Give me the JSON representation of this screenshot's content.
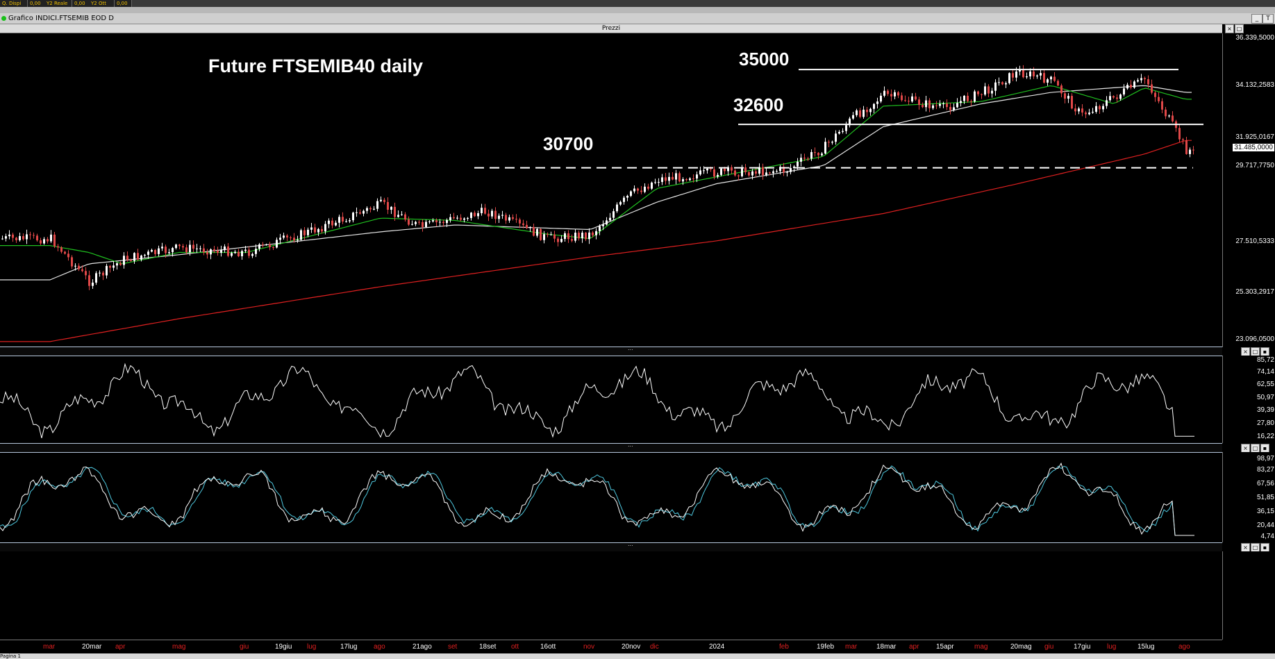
{
  "topbar": {
    "fields": [
      "Q. Dispi",
      "0,00",
      "Y2 Reale",
      "0,00",
      "Y2 Ott",
      "0,00"
    ]
  },
  "window": {
    "title": "Grafico INDICI.FTSEMIB EOD D",
    "pane_title": "Prezzi"
  },
  "annotations": {
    "title": "Future FTSEMIB40 daily",
    "level_35000": "35000",
    "level_32600": "32600",
    "level_30700": "30700"
  },
  "price_axis": {
    "ticks": [
      "36.339,5000",
      "34.132,2583",
      "31.925,0167",
      "29.717,7750",
      "27.510,5333",
      "25.303,2917",
      "23.096,0500"
    ],
    "current": "31.485,0000"
  },
  "rsi_axis": {
    "ticks": [
      "85,72",
      "74,14",
      "62,55",
      "50,97",
      "39,39",
      "27,80",
      "16,22"
    ]
  },
  "stoch_axis": {
    "ticks": [
      "98,97",
      "83,27",
      "67,56",
      "51,85",
      "36,15",
      "20,44",
      "4,74"
    ]
  },
  "x_axis": {
    "labels": [
      {
        "t": "mar",
        "c": "#e02020"
      },
      {
        "t": "20mar",
        "c": "#ffffff"
      },
      {
        "t": "apr",
        "c": "#e02020"
      },
      {
        "t": "mag",
        "c": "#e02020"
      },
      {
        "t": "giu",
        "c": "#e02020"
      },
      {
        "t": "19giu",
        "c": "#ffffff"
      },
      {
        "t": "lug",
        "c": "#e02020"
      },
      {
        "t": "17lug",
        "c": "#ffffff"
      },
      {
        "t": "ago",
        "c": "#e02020"
      },
      {
        "t": "21ago",
        "c": "#ffffff"
      },
      {
        "t": "set",
        "c": "#e02020"
      },
      {
        "t": "18set",
        "c": "#ffffff"
      },
      {
        "t": "ott",
        "c": "#e02020"
      },
      {
        "t": "16ott",
        "c": "#ffffff"
      },
      {
        "t": "nov",
        "c": "#e02020"
      },
      {
        "t": "20nov",
        "c": "#ffffff"
      },
      {
        "t": "dic",
        "c": "#e02020"
      },
      {
        "t": "2024",
        "c": "#ffffff"
      },
      {
        "t": "feb",
        "c": "#e02020"
      },
      {
        "t": "19feb",
        "c": "#ffffff"
      },
      {
        "t": "mar",
        "c": "#e02020"
      },
      {
        "t": "18mar",
        "c": "#ffffff"
      },
      {
        "t": "apr",
        "c": "#e02020"
      },
      {
        "t": "15apr",
        "c": "#ffffff"
      },
      {
        "t": "mag",
        "c": "#e02020"
      },
      {
        "t": "20mag",
        "c": "#ffffff"
      },
      {
        "t": "giu",
        "c": "#e02020"
      },
      {
        "t": "17giu",
        "c": "#ffffff"
      },
      {
        "t": "lug",
        "c": "#e02020"
      },
      {
        "t": "15lug",
        "c": "#ffffff"
      },
      {
        "t": "ago",
        "c": "#e02020"
      }
    ]
  },
  "status": {
    "page": "Pagina 1"
  },
  "chart_data": {
    "type": "line",
    "instrument": "FTSEMIB future, daily",
    "price_levels": [
      35000,
      32600,
      30700
    ],
    "price_range": [
      23096.05,
      36339.5
    ],
    "last_price": 31485,
    "closes_keypoints": [
      {
        "d": "mar",
        "v": 27600
      },
      {
        "d": "20mar",
        "v": 25700
      },
      {
        "d": "apr",
        "v": 26700
      },
      {
        "d": "mag",
        "v": 27200
      },
      {
        "d": "giu",
        "v": 27000
      },
      {
        "d": "lug",
        "v": 28000
      },
      {
        "d": "ago",
        "v": 29100
      },
      {
        "d": "21ago",
        "v": 28100
      },
      {
        "d": "set",
        "v": 28500
      },
      {
        "d": "18set",
        "v": 28800
      },
      {
        "d": "16ott",
        "v": 27600
      },
      {
        "d": "nov",
        "v": 27800
      },
      {
        "d": "20nov",
        "v": 29500
      },
      {
        "d": "dic",
        "v": 30200
      },
      {
        "d": "2024",
        "v": 30500
      },
      {
        "d": "feb",
        "v": 30600
      },
      {
        "d": "19feb",
        "v": 31600
      },
      {
        "d": "mar",
        "v": 32900
      },
      {
        "d": "18mar",
        "v": 33900
      },
      {
        "d": "15apr",
        "v": 33300
      },
      {
        "d": "mag",
        "v": 34000
      },
      {
        "d": "20mag",
        "v": 34900
      },
      {
        "d": "giu",
        "v": 34500
      },
      {
        "d": "17giu",
        "v": 33000
      },
      {
        "d": "lug",
        "v": 33800
      },
      {
        "d": "15lug",
        "v": 34600
      },
      {
        "d": "ago",
        "v": 31485
      }
    ],
    "ma_fast_keypoints": [
      {
        "d": "mar",
        "v": 27300
      },
      {
        "d": "20mar",
        "v": 27000
      },
      {
        "d": "apr",
        "v": 26500
      },
      {
        "d": "mag",
        "v": 27000
      },
      {
        "d": "giu",
        "v": 27000
      },
      {
        "d": "ago",
        "v": 28500
      },
      {
        "d": "set",
        "v": 28400
      },
      {
        "d": "16ott",
        "v": 27800
      },
      {
        "d": "nov",
        "v": 27600
      },
      {
        "d": "dic",
        "v": 29800
      },
      {
        "d": "2024",
        "v": 30300
      },
      {
        "d": "19feb",
        "v": 31200
      },
      {
        "d": "18mar",
        "v": 33400
      },
      {
        "d": "mag",
        "v": 33600
      },
      {
        "d": "giu",
        "v": 34300
      },
      {
        "d": "lug",
        "v": 33500
      },
      {
        "d": "15lug",
        "v": 34200
      },
      {
        "d": "ago",
        "v": 33700
      }
    ],
    "ma_mid_keypoints": [
      {
        "d": "mar",
        "v": 25800
      },
      {
        "d": "20mar",
        "v": 26500
      },
      {
        "d": "mag",
        "v": 26900
      },
      {
        "d": "ago",
        "v": 27900
      },
      {
        "d": "set",
        "v": 28200
      },
      {
        "d": "nov",
        "v": 28000
      },
      {
        "d": "dic",
        "v": 29200
      },
      {
        "d": "2024",
        "v": 30000
      },
      {
        "d": "19feb",
        "v": 30800
      },
      {
        "d": "18mar",
        "v": 32500
      },
      {
        "d": "mag",
        "v": 33500
      },
      {
        "d": "giu",
        "v": 34000
      },
      {
        "d": "15lug",
        "v": 34300
      },
      {
        "d": "ago",
        "v": 34000
      }
    ],
    "ma_slow_keypoints": [
      {
        "d": "mar",
        "v": 23100
      },
      {
        "d": "mag",
        "v": 24100
      },
      {
        "d": "ago",
        "v": 25500
      },
      {
        "d": "nov",
        "v": 26800
      },
      {
        "d": "2024",
        "v": 27500
      },
      {
        "d": "18mar",
        "v": 28700
      },
      {
        "d": "20mag",
        "v": 30000
      },
      {
        "d": "15lug",
        "v": 31300
      },
      {
        "d": "ago",
        "v": 31900
      }
    ],
    "rsi_range": [
      16.22,
      85.72
    ],
    "stoch_range": [
      4.74,
      98.97
    ],
    "colors": {
      "ma_fast": "#1fbf1f",
      "ma_mid": "#e6e6e6",
      "ma_slow": "#e02020",
      "stoch_signal": "#4fc9e0"
    }
  }
}
